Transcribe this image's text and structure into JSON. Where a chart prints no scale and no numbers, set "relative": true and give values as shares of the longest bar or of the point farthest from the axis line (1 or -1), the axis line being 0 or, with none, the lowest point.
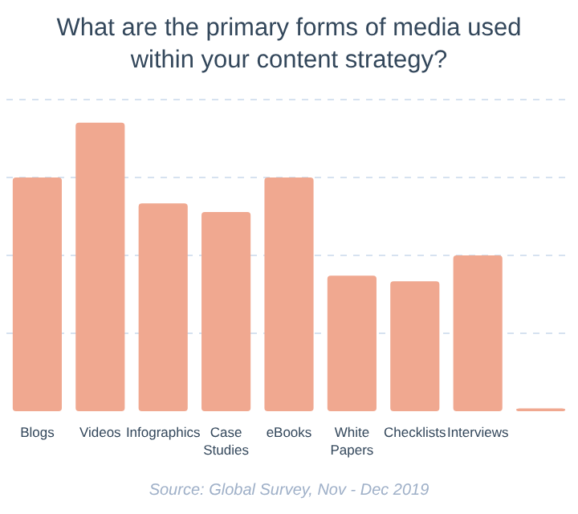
{
  "chart_data": {
    "type": "bar",
    "title": "What are the primary forms of media used within your content strategy?",
    "categories": [
      "Blogs",
      "Videos",
      "Infographics",
      "Case Studies",
      "eBooks",
      "White Papers",
      "Checklists",
      "Interviews",
      null
    ],
    "values": [
      0.81,
      1,
      0.72,
      0.69,
      0.81,
      0.47,
      0.45,
      0.54,
      0.01
    ],
    "color": "#f0a890",
    "relative": true,
    "grid": "y",
    "annotations": [
      "Source: Global Survey, Nov - Dec 2019"
    ]
  }
}
